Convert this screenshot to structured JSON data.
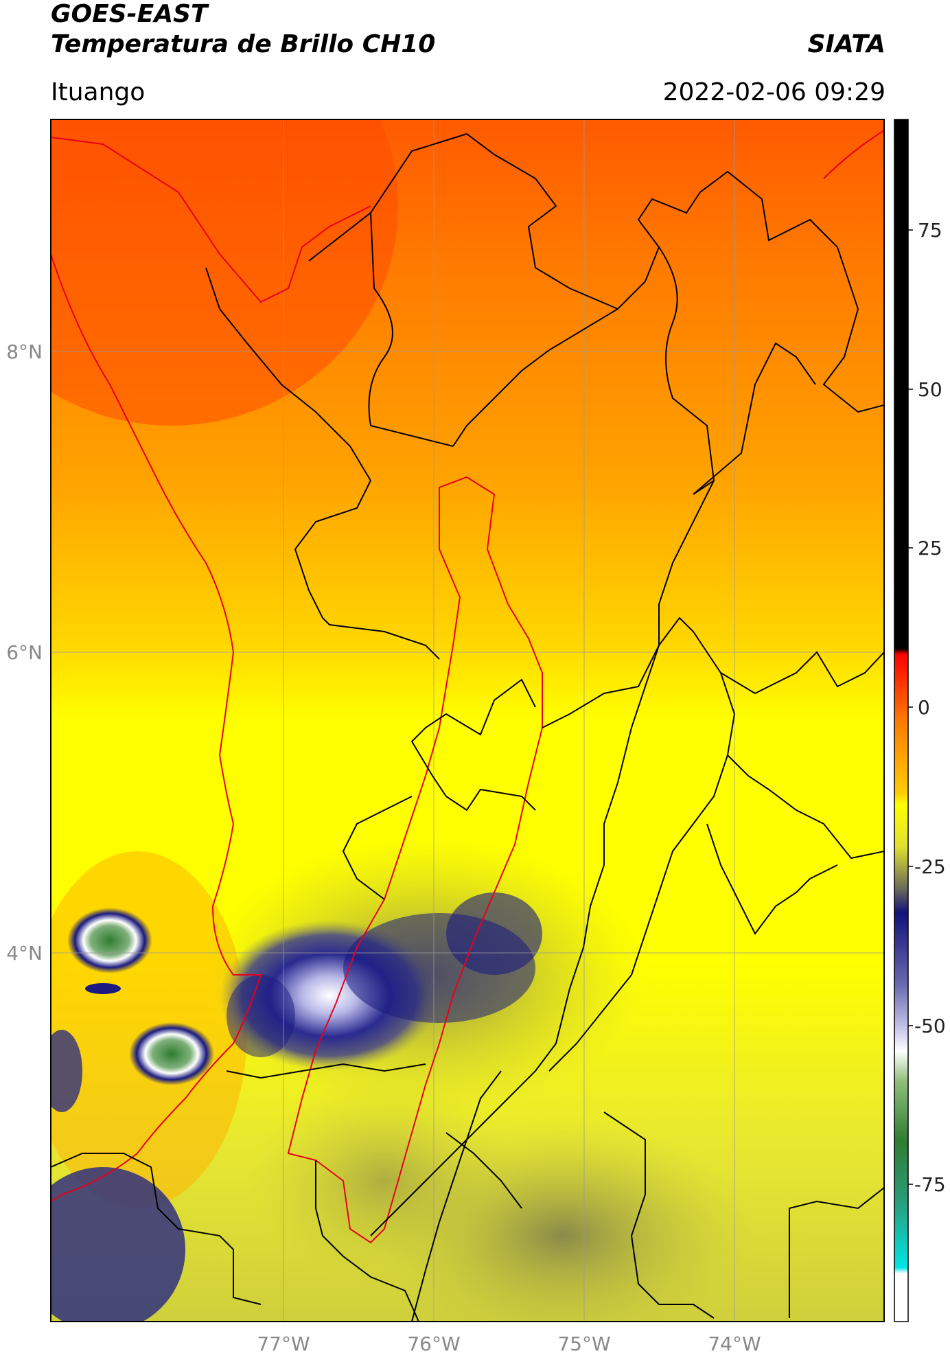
{
  "header": {
    "satellite": "GOES-EAST",
    "product": "Temperatura de Brillo CH10",
    "brand": "SIATA",
    "location": "Ituango",
    "datetime": "2022-02-06 09:29"
  },
  "axes": {
    "lat_ticks": [
      "8°N",
      "6°N",
      "4°N"
    ],
    "lon_ticks": [
      "77°W",
      "76°W",
      "75°W",
      "74°W"
    ]
  },
  "colorbar": {
    "ticks": [
      "75",
      "50",
      "25",
      "0",
      "-25",
      "-50",
      "-75"
    ],
    "min": -90,
    "max": 90,
    "colors": {
      "hot": "#000000",
      "red": "#ff0000",
      "orange": "#ff8c00",
      "yellow": "#ffff00",
      "olive": "#7a7a3a",
      "navy": "#10106e",
      "lavender": "#b0b0e6",
      "white": "#ffffff",
      "green": "#2e7d32",
      "teal": "#26a69a",
      "cyan": "#00e5e5"
    }
  },
  "map_colors": {
    "boundary_black": "#000000",
    "boundary_red": "#e8001c",
    "grid": "#9a9a9a"
  }
}
